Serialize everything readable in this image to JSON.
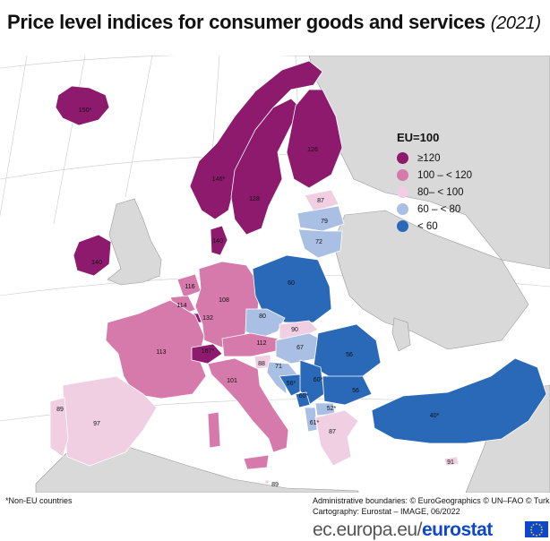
{
  "title": "Price level indices for consumer goods and services",
  "year": "(2021)",
  "colors": {
    "ge120": "#8e1a6e",
    "c100_120": "#d67aac",
    "c80_100": "#f1cfe3",
    "c60_80": "#a9bfe3",
    "lt60": "#2a68b8",
    "nonEU": "#d9d9d9",
    "sea": "#ffffff"
  },
  "legend": {
    "title": "EU=100",
    "items": [
      {
        "label": "≥120",
        "color": "#8e1a6e"
      },
      {
        "label": "100 – < 120",
        "color": "#d67aac"
      },
      {
        "label": "80– < 100",
        "color": "#f1cfe3"
      },
      {
        "label": "60 – < 80",
        "color": "#a9bfe3"
      },
      {
        "label": "< 60",
        "color": "#2a68b8"
      }
    ]
  },
  "country_values": [
    {
      "country": "Iceland",
      "value": "150*"
    },
    {
      "country": "Norway",
      "value": "146*"
    },
    {
      "country": "Sweden",
      "value": "128"
    },
    {
      "country": "Finland",
      "value": "126"
    },
    {
      "country": "Estonia",
      "value": "87"
    },
    {
      "country": "Latvia",
      "value": "79"
    },
    {
      "country": "Lithuania",
      "value": "72"
    },
    {
      "country": "Denmark",
      "value": "140"
    },
    {
      "country": "Ireland",
      "value": "140"
    },
    {
      "country": "Netherlands",
      "value": "116"
    },
    {
      "country": "Belgium",
      "value": "114"
    },
    {
      "country": "Luxembourg",
      "value": "132"
    },
    {
      "country": "Germany",
      "value": "108"
    },
    {
      "country": "Poland",
      "value": "60"
    },
    {
      "country": "Czechia",
      "value": "80"
    },
    {
      "country": "Slovakia",
      "value": "90"
    },
    {
      "country": "France",
      "value": "113"
    },
    {
      "country": "Switzerland",
      "value": "167*"
    },
    {
      "country": "Austria",
      "value": "112"
    },
    {
      "country": "Hungary",
      "value": "67"
    },
    {
      "country": "Slovenia",
      "value": "88"
    },
    {
      "country": "Croatia",
      "value": "71"
    },
    {
      "country": "Romania",
      "value": "56"
    },
    {
      "country": "Bosnia and Herzegovina",
      "value": "56*"
    },
    {
      "country": "Serbia",
      "value": "60*"
    },
    {
      "country": "Montenegro",
      "value": "60*"
    },
    {
      "country": "North Macedonia",
      "value": "52*"
    },
    {
      "country": "Albania",
      "value": "61*"
    },
    {
      "country": "Bulgaria",
      "value": "56"
    },
    {
      "country": "Greece",
      "value": "87"
    },
    {
      "country": "Italy",
      "value": "101"
    },
    {
      "country": "Malta",
      "value": "89"
    },
    {
      "country": "Spain",
      "value": "97"
    },
    {
      "country": "Portugal",
      "value": "89"
    },
    {
      "country": "Türkiye",
      "value": "40*"
    },
    {
      "country": "Cyprus",
      "value": "91"
    }
  ],
  "footnote": "*Non-EU countries",
  "credits": {
    "line1": "Administrative boundaries: © EuroGeographics © UN–FAO © Turkstat",
    "line2": "Cartography: Eurostat – IMAGE, 06/2022"
  },
  "brand": {
    "prefix": "ec.europa.eu/",
    "name": "eurostat"
  }
}
